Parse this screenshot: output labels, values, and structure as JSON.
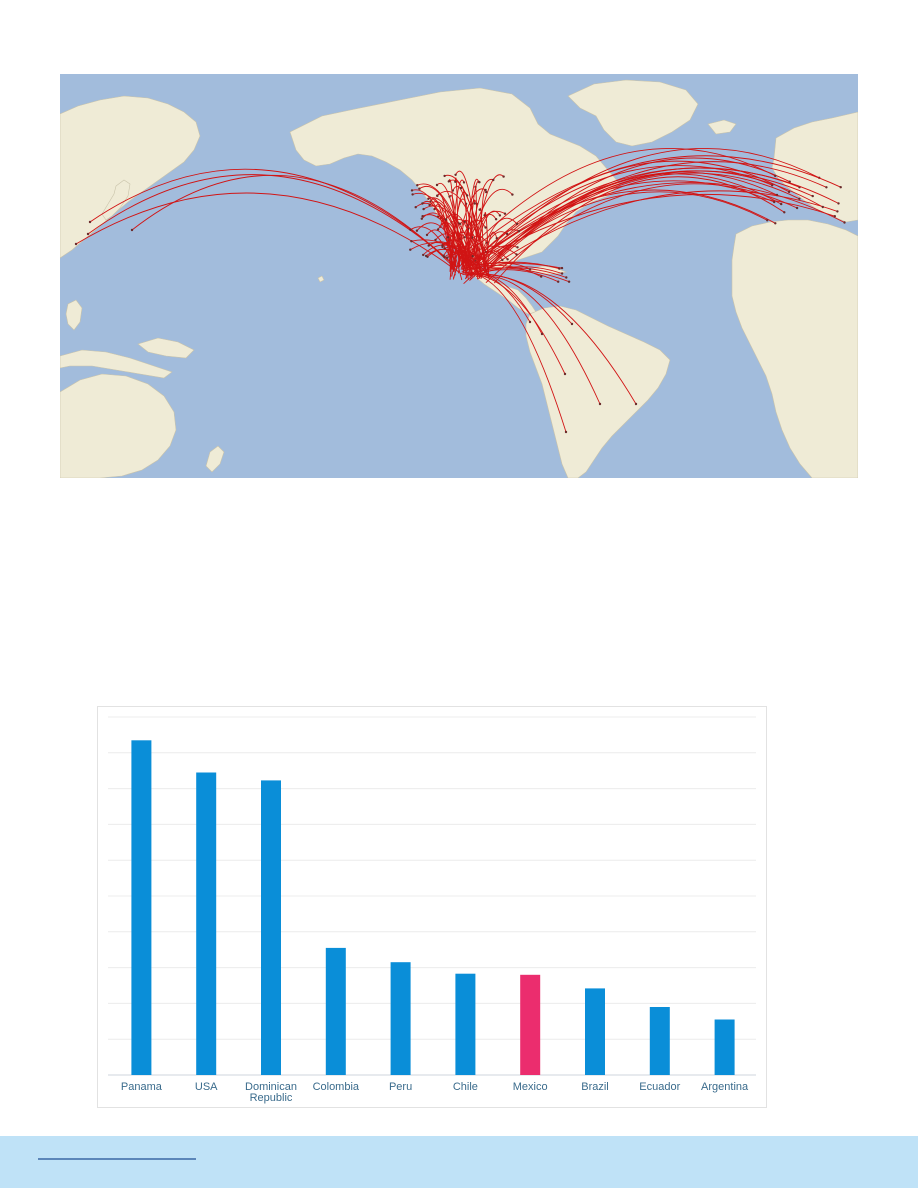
{
  "map": {
    "ocean_color": "#a2bcdc",
    "land_color": "#efebd6",
    "route_color": "#d11414"
  },
  "chart_data": {
    "type": "bar",
    "categories": [
      "Panama",
      "USA",
      "Dominican Republic",
      "Colombia",
      "Peru",
      "Chile",
      "Mexico",
      "Brazil",
      "Ecuador",
      "Argentina"
    ],
    "category_lines": [
      [
        "Panama"
      ],
      [
        "USA"
      ],
      [
        "Dominican",
        "Republic"
      ],
      [
        "Colombia"
      ],
      [
        "Peru"
      ],
      [
        "Chile"
      ],
      [
        "Mexico"
      ],
      [
        "Brazil"
      ],
      [
        "Ecuador"
      ],
      [
        "Argentina"
      ]
    ],
    "values": [
      93.5,
      84.5,
      82.3,
      35.5,
      31.5,
      28.3,
      28.0,
      24.2,
      19.0,
      15.5
    ],
    "highlight": "Mexico",
    "ylim": [
      0,
      100
    ],
    "grid": true,
    "colors": {
      "default": "#0a8ed8",
      "highlight": "#eb2d6e"
    },
    "title": "",
    "xlabel": "",
    "ylabel": ""
  },
  "footer": {
    "band_color": "#bfe2f7",
    "rule_color": "#5b86b9"
  }
}
